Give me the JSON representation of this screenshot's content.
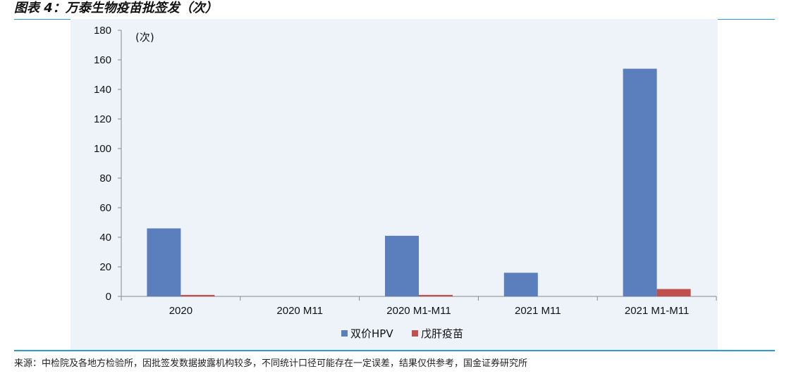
{
  "figure": {
    "title": "图表 4：万泰生物疫苗批签发（次）",
    "source": "来源：中检院及各地方检验所，因批签发数据披露机构较多，不同统计口径可能存在一定误差，结果仅供参考，国金证券研究所"
  },
  "chart_data": {
    "type": "bar",
    "unit_label": "(次)",
    "categories": [
      "2020",
      "2020 M11",
      "2020 M1-M11",
      "2021 M11",
      "2021 M1-M11"
    ],
    "series": [
      {
        "name": "双价HPV",
        "values": [
          46,
          0,
          41,
          16,
          154
        ],
        "color": "#5b7fbd"
      },
      {
        "name": "戊肝疫苗",
        "values": [
          1,
          0,
          1,
          0,
          5
        ],
        "color": "#c0504d"
      }
    ],
    "ylim": [
      0,
      180
    ],
    "yticks": [
      0,
      20,
      40,
      60,
      80,
      100,
      120,
      140,
      160,
      180
    ],
    "grid": false,
    "legend_position": "bottom-center"
  }
}
